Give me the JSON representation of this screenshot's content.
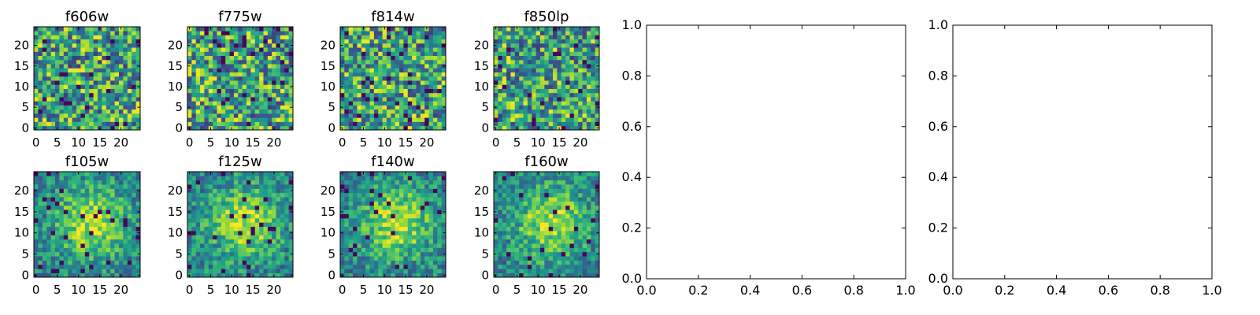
{
  "chart_data": [
    {
      "type": "heatmap",
      "title": "f606w",
      "grid_size": [
        25,
        25
      ],
      "xlim": [
        -0.5,
        24.5
      ],
      "ylim": [
        -0.5,
        24.5
      ],
      "xticks": [
        "0",
        "5",
        "10",
        "15",
        "20"
      ],
      "yticks": [
        "0",
        "5",
        "10",
        "15",
        "20"
      ],
      "colormap": "viridis",
      "pattern": "noise",
      "seed": 11
    },
    {
      "type": "heatmap",
      "title": "f775w",
      "grid_size": [
        25,
        25
      ],
      "xlim": [
        -0.5,
        24.5
      ],
      "ylim": [
        -0.5,
        24.5
      ],
      "xticks": [
        "0",
        "5",
        "10",
        "15",
        "20"
      ],
      "yticks": [
        "0",
        "5",
        "10",
        "15",
        "20"
      ],
      "colormap": "viridis",
      "pattern": "noise",
      "seed": 23
    },
    {
      "type": "heatmap",
      "title": "f814w",
      "grid_size": [
        25,
        25
      ],
      "xlim": [
        -0.5,
        24.5
      ],
      "ylim": [
        -0.5,
        24.5
      ],
      "xticks": [
        "0",
        "5",
        "10",
        "15",
        "20"
      ],
      "yticks": [
        "0",
        "5",
        "10",
        "15",
        "20"
      ],
      "colormap": "viridis",
      "pattern": "noise",
      "seed": 37
    },
    {
      "type": "heatmap",
      "title": "f850lp",
      "grid_size": [
        25,
        25
      ],
      "xlim": [
        -0.5,
        24.5
      ],
      "ylim": [
        -0.5,
        24.5
      ],
      "xticks": [
        "0",
        "5",
        "10",
        "15",
        "20"
      ],
      "yticks": [
        "0",
        "5",
        "10",
        "15",
        "20"
      ],
      "colormap": "viridis",
      "pattern": "noise",
      "seed": 41
    },
    {
      "type": "heatmap",
      "title": "f105w",
      "grid_size": [
        25,
        25
      ],
      "xlim": [
        -0.5,
        24.5
      ],
      "ylim": [
        -0.5,
        24.5
      ],
      "xticks": [
        "0",
        "5",
        "10",
        "15",
        "20"
      ],
      "yticks": [
        "0",
        "5",
        "10",
        "15",
        "20"
      ],
      "colormap": "viridis",
      "pattern": "centered-source",
      "seed": 53
    },
    {
      "type": "heatmap",
      "title": "f125w",
      "grid_size": [
        25,
        25
      ],
      "xlim": [
        -0.5,
        24.5
      ],
      "ylim": [
        -0.5,
        24.5
      ],
      "xticks": [
        "0",
        "5",
        "10",
        "15",
        "20"
      ],
      "yticks": [
        "0",
        "5",
        "10",
        "15",
        "20"
      ],
      "colormap": "viridis",
      "pattern": "centered-source",
      "seed": 67
    },
    {
      "type": "heatmap",
      "title": "f140w",
      "grid_size": [
        25,
        25
      ],
      "xlim": [
        -0.5,
        24.5
      ],
      "ylim": [
        -0.5,
        24.5
      ],
      "xticks": [
        "0",
        "5",
        "10",
        "15",
        "20"
      ],
      "yticks": [
        "0",
        "5",
        "10",
        "15",
        "20"
      ],
      "colormap": "viridis",
      "pattern": "centered-source",
      "seed": 79
    },
    {
      "type": "heatmap",
      "title": "f160w",
      "grid_size": [
        25,
        25
      ],
      "xlim": [
        -0.5,
        24.5
      ],
      "ylim": [
        -0.5,
        24.5
      ],
      "xticks": [
        "0",
        "5",
        "10",
        "15",
        "20"
      ],
      "yticks": [
        "0",
        "5",
        "10",
        "15",
        "20"
      ],
      "colormap": "viridis",
      "pattern": "centered-source",
      "seed": 97
    },
    {
      "type": "scatter",
      "title": "",
      "xlim": [
        0.0,
        1.0
      ],
      "ylim": [
        0.0,
        1.0
      ],
      "xticks": [
        "0.0",
        "0.2",
        "0.4",
        "0.6",
        "0.8",
        "1.0"
      ],
      "yticks": [
        "0.0",
        "0.2",
        "0.4",
        "0.6",
        "0.8",
        "1.0"
      ],
      "series": []
    },
    {
      "type": "scatter",
      "title": "",
      "xlim": [
        0.0,
        1.0
      ],
      "ylim": [
        0.0,
        1.0
      ],
      "xticks": [
        "0.0",
        "0.2",
        "0.4",
        "0.6",
        "0.8",
        "1.0"
      ],
      "yticks": [
        "0.0",
        "0.2",
        "0.4",
        "0.6",
        "0.8",
        "1.0"
      ],
      "series": []
    }
  ]
}
